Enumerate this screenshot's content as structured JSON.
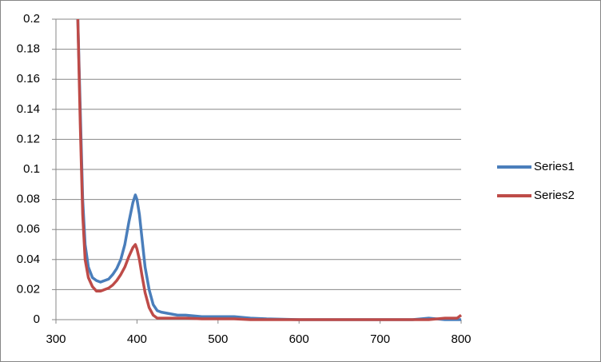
{
  "chart_data": {
    "type": "line",
    "x": [
      327,
      330,
      333,
      336,
      340,
      345,
      350,
      355,
      360,
      365,
      370,
      375,
      380,
      385,
      390,
      395,
      398,
      400,
      403,
      406,
      410,
      415,
      420,
      425,
      430,
      440,
      450,
      460,
      480,
      500,
      520,
      540,
      560,
      600,
      650,
      700,
      740,
      760,
      780,
      795,
      800
    ],
    "series": [
      {
        "name": "Series1",
        "color": "#4a7ebb",
        "values": [
          0.2,
          0.14,
          0.08,
          0.05,
          0.035,
          0.028,
          0.026,
          0.025,
          0.026,
          0.027,
          0.03,
          0.034,
          0.04,
          0.05,
          0.065,
          0.078,
          0.083,
          0.08,
          0.07,
          0.055,
          0.035,
          0.02,
          0.01,
          0.006,
          0.005,
          0.004,
          0.003,
          0.003,
          0.002,
          0.002,
          0.002,
          0.001,
          0.0005,
          0,
          0,
          0,
          0,
          0.001,
          0,
          0,
          0
        ]
      },
      {
        "name": "Series2",
        "color": "#be4b48",
        "values": [
          0.2,
          0.13,
          0.07,
          0.04,
          0.028,
          0.022,
          0.019,
          0.019,
          0.02,
          0.021,
          0.023,
          0.026,
          0.03,
          0.035,
          0.042,
          0.048,
          0.05,
          0.047,
          0.04,
          0.03,
          0.018,
          0.008,
          0.003,
          0.001,
          0.001,
          0.001,
          0.001,
          0.001,
          0.0005,
          0.0005,
          0.0005,
          0,
          0,
          0,
          0,
          0,
          0,
          0,
          0.001,
          0.001,
          0.003
        ]
      }
    ],
    "xlim": [
      300,
      800
    ],
    "xticks": [
      300,
      400,
      500,
      600,
      700,
      800
    ],
    "ylim": [
      0,
      0.2
    ],
    "yticks": [
      0,
      0.02,
      0.04,
      0.06,
      0.08,
      0.1,
      0.12,
      0.14,
      0.16,
      0.18,
      0.2
    ],
    "grid": true,
    "legend": "right"
  }
}
